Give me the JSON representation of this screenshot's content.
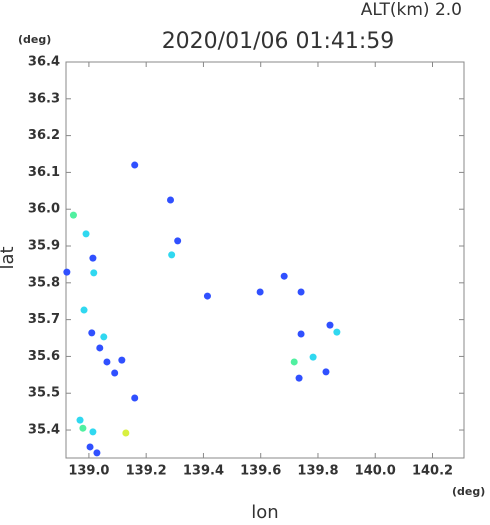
{
  "chart_data": {
    "type": "scatter",
    "title": "2020/01/06 01:41:59",
    "subtitle": "ALT(km) 2.0",
    "x_label": "lon",
    "y_label": "lat",
    "x_unit": "(deg)",
    "y_unit": "(deg)",
    "xlim": [
      138.92,
      140.31
    ],
    "ylim": [
      35.324,
      36.4
    ],
    "xticks": [
      {
        "value": 139.0,
        "label": "139.0"
      },
      {
        "value": 139.2,
        "label": "139.2"
      },
      {
        "value": 139.4,
        "label": "139.4"
      },
      {
        "value": 139.6,
        "label": "139.6"
      },
      {
        "value": 139.8,
        "label": "139.8"
      },
      {
        "value": 140.0,
        "label": "140.0"
      },
      {
        "value": 140.2,
        "label": "140.2"
      }
    ],
    "yticks": [
      35.4,
      35.5,
      35.6,
      35.7,
      35.8,
      35.9,
      {
        "value": 36.0,
        "label": "36.0"
      },
      36.1,
      36.2,
      36.3,
      36.4
    ],
    "grid": false,
    "series": [
      {
        "color": "#3050ff",
        "x": [
          139.16,
          139.285,
          139.014,
          138.923,
          139.01,
          139.038,
          139.063,
          139.09,
          139.115,
          139.16,
          139.004,
          139.028,
          139.31,
          139.414,
          139.598,
          139.682,
          139.741,
          139.741,
          139.842,
          139.734,
          139.828
        ],
        "y": [
          36.12,
          36.025,
          35.867,
          35.829,
          35.664,
          35.623,
          35.585,
          35.555,
          35.59,
          35.487,
          35.354,
          35.338,
          35.914,
          35.764,
          35.775,
          35.818,
          35.775,
          35.661,
          35.685,
          35.541,
          35.558
        ]
      },
      {
        "color": "#30d8f0",
        "x": [
          138.99,
          139.017,
          138.983,
          139.052,
          138.969,
          139.014,
          139.289,
          139.866,
          139.783
        ],
        "y": [
          35.933,
          35.827,
          35.726,
          35.653,
          35.427,
          35.395,
          35.876,
          35.666,
          35.598
        ]
      },
      {
        "color": "#50f0a0",
        "x": [
          138.946,
          138.979,
          139.717
        ],
        "y": [
          35.984,
          35.405,
          35.585
        ]
      },
      {
        "color": "#d8f040",
        "x": [
          139.129
        ],
        "y": [
          35.392
        ]
      }
    ]
  }
}
